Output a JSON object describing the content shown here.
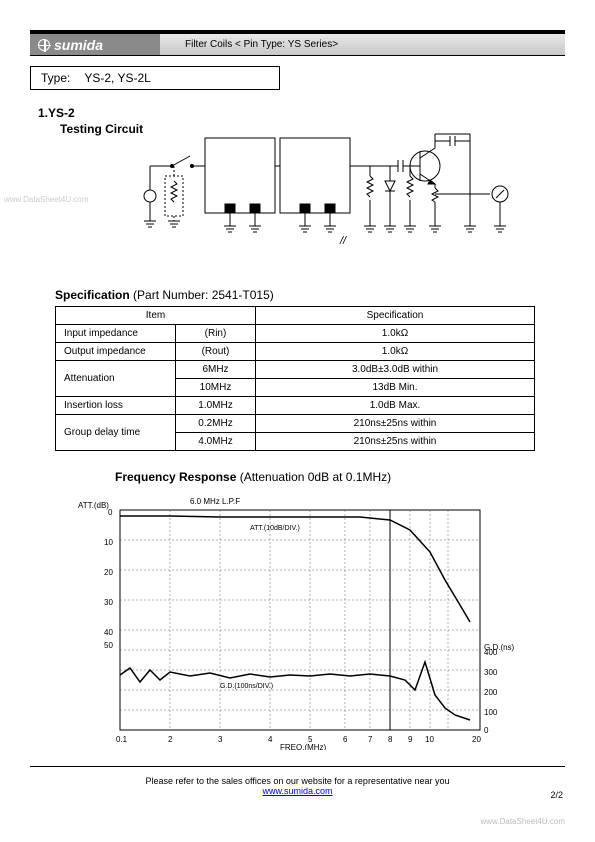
{
  "header": {
    "logo_text": "sumida",
    "subtitle": "Filter Coils < Pin Type: YS Series>"
  },
  "type_box": {
    "label": "Type:",
    "value": "YS-2, YS-2L"
  },
  "section1": {
    "number": "1.YS-2",
    "title": "Testing Circuit"
  },
  "circuit": {
    "slash_label": "//"
  },
  "spec": {
    "heading_bold": "Specification",
    "heading_rest": " (Part Number: 2541-T015)",
    "header_item": "Item",
    "header_spec": "Specification",
    "rows": [
      {
        "item": "Input impedance",
        "param": "(Rin)",
        "value": "1.0kΩ"
      },
      {
        "item": "Output impedance",
        "param": "(Rout)",
        "value": "1.0kΩ"
      },
      {
        "item": "Attenuation",
        "param": "6MHz",
        "value": "3.0dB±3.0dB within"
      },
      {
        "item": "",
        "param": "10MHz",
        "value": "13dB Min."
      },
      {
        "item": "Insertion loss",
        "param": "1.0MHz",
        "value": "1.0dB Max."
      },
      {
        "item": "Group delay time",
        "param": "0.2MHz",
        "value": "210ns±25ns within"
      },
      {
        "item": "",
        "param": "4.0MHz",
        "value": "210ns±25ns within"
      }
    ]
  },
  "freq": {
    "heading_bold": "Frequency Response",
    "heading_rest": " (Attenuation 0dB at 0.1MHz)",
    "chart": {
      "title_top": "6.0 MHz L.P.F",
      "y_label_left": "ATT.(dB)",
      "y_ticks_left": [
        "0",
        "10",
        "20",
        "30",
        "40",
        "50"
      ],
      "att_label": "ATT.(10dB/DIV.)",
      "y_label_right": "G.D.(ns)",
      "y_ticks_right": [
        "400",
        "300",
        "200",
        "100",
        "0"
      ],
      "gd_label": "G.D.(100ns/DIV.)",
      "x_label": "FREQ.(MHz)",
      "x_ticks": [
        "0.1",
        "2",
        "3",
        "4",
        "5",
        "6",
        "7",
        "8",
        "9",
        "10",
        "20"
      ],
      "grid_color": "#404040",
      "att_curve": [
        [
          50,
          26
        ],
        [
          100,
          26
        ],
        [
          150,
          27
        ],
        [
          200,
          27
        ],
        [
          250,
          27
        ],
        [
          290,
          27
        ],
        [
          320,
          30
        ],
        [
          340,
          40
        ],
        [
          360,
          62
        ],
        [
          375,
          90
        ],
        [
          390,
          115
        ],
        [
          400,
          132
        ]
      ],
      "gd_curve": [
        [
          50,
          185
        ],
        [
          60,
          178
        ],
        [
          70,
          192
        ],
        [
          80,
          180
        ],
        [
          90,
          190
        ],
        [
          100,
          182
        ],
        [
          120,
          186
        ],
        [
          140,
          183
        ],
        [
          160,
          188
        ],
        [
          180,
          184
        ],
        [
          200,
          187
        ],
        [
          220,
          185
        ],
        [
          240,
          186
        ],
        [
          260,
          184
        ],
        [
          280,
          186
        ],
        [
          300,
          184
        ],
        [
          320,
          186
        ],
        [
          335,
          190
        ],
        [
          345,
          200
        ],
        [
          355,
          172
        ],
        [
          365,
          205
        ],
        [
          375,
          218
        ],
        [
          385,
          225
        ],
        [
          400,
          230
        ]
      ]
    }
  },
  "footer": {
    "text": "Please refer to the sales offices on our website for a representative near you",
    "link": "www.sumida.com",
    "page": "2/2"
  },
  "watermarks": {
    "left": "www.DataSheet4U.com",
    "right": "www.DataSheet4U.com"
  }
}
